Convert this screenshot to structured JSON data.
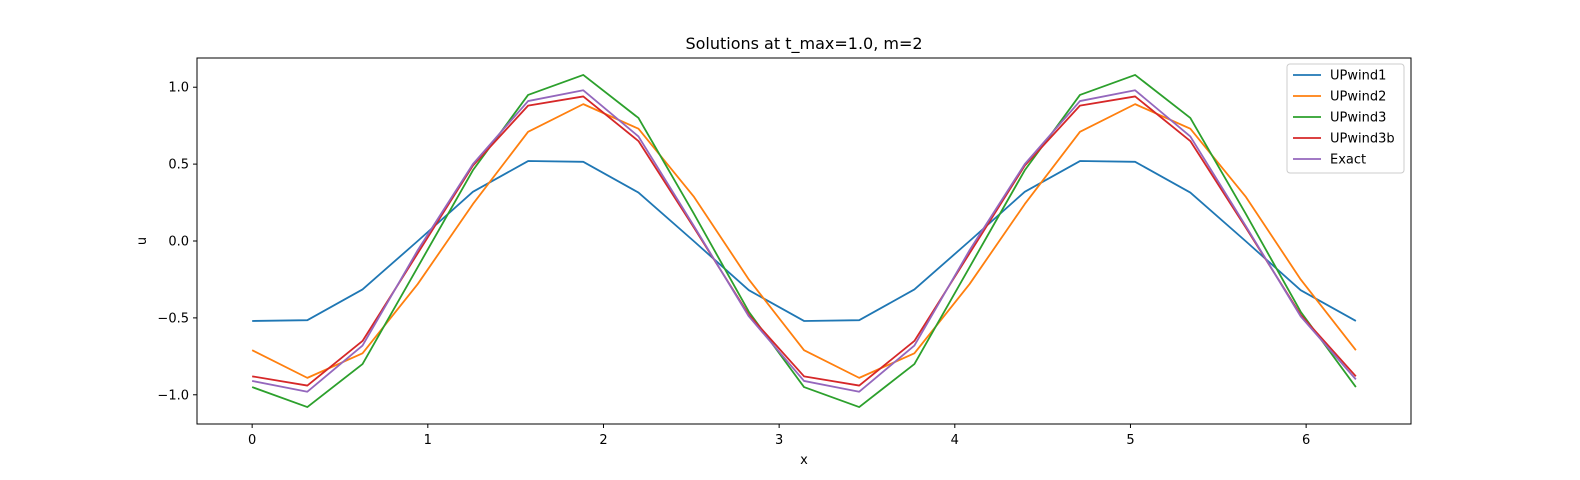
{
  "chart_data": {
    "type": "line",
    "title": "Solutions at t_max=1.0, m=2",
    "xlabel": "x",
    "ylabel": "u",
    "xlim": [
      -0.314,
      6.597
    ],
    "ylim": [
      -1.19,
      1.19
    ],
    "xticks": [
      0,
      1,
      2,
      3,
      4,
      5,
      6
    ],
    "yticks": [
      -1.0,
      -0.5,
      0.0,
      0.5,
      1.0
    ],
    "xtick_labels": [
      "0",
      "1",
      "2",
      "3",
      "4",
      "5",
      "6"
    ],
    "ytick_labels": [
      "−1.0",
      "−0.5",
      "0.0",
      "0.5",
      "1.0"
    ],
    "grid": false,
    "legend_position": "top-right",
    "x": [
      0.0,
      0.3142,
      0.6283,
      0.9425,
      1.2566,
      1.5708,
      1.885,
      2.1991,
      2.5133,
      2.8274,
      3.1416,
      3.4558,
      3.7699,
      4.0841,
      4.3982,
      4.7124,
      5.0265,
      5.3407,
      5.6549,
      5.969,
      6.2832
    ],
    "series": [
      {
        "name": "UPwind1",
        "color": "#1f77b4",
        "values": [
          -0.52,
          -0.515,
          -0.315,
          -0.0,
          0.32,
          0.52,
          0.515,
          0.315,
          0.0,
          -0.32,
          -0.52,
          -0.515,
          -0.315,
          -0.0,
          0.32,
          0.52,
          0.515,
          0.315,
          0.0,
          -0.32,
          -0.52
        ]
      },
      {
        "name": "UPwind2",
        "color": "#ff7f0e",
        "values": [
          -0.71,
          -0.89,
          -0.73,
          -0.28,
          0.24,
          0.71,
          0.89,
          0.73,
          0.29,
          -0.25,
          -0.71,
          -0.89,
          -0.73,
          -0.28,
          0.24,
          0.71,
          0.89,
          0.73,
          0.29,
          -0.25,
          -0.71
        ]
      },
      {
        "name": "UPwind3",
        "color": "#2ca02c",
        "values": [
          -0.95,
          -1.08,
          -0.8,
          -0.17,
          0.46,
          0.95,
          1.08,
          0.8,
          0.18,
          -0.46,
          -0.95,
          -1.08,
          -0.8,
          -0.17,
          0.46,
          0.95,
          1.08,
          0.8,
          0.18,
          -0.46,
          -0.95
        ]
      },
      {
        "name": "UPwind3b",
        "color": "#d62728",
        "values": [
          -0.88,
          -0.94,
          -0.65,
          -0.08,
          0.49,
          0.88,
          0.94,
          0.65,
          0.09,
          -0.48,
          -0.88,
          -0.94,
          -0.65,
          -0.08,
          0.49,
          0.88,
          0.94,
          0.65,
          0.09,
          -0.48,
          -0.88
        ]
      },
      {
        "name": "Exact",
        "color": "#9467bd",
        "values": [
          -0.91,
          -0.98,
          -0.68,
          -0.06,
          0.5,
          0.91,
          0.98,
          0.68,
          0.1,
          -0.49,
          -0.91,
          -0.98,
          -0.68,
          -0.06,
          0.5,
          0.91,
          0.98,
          0.68,
          0.1,
          -0.49,
          -0.9
        ]
      }
    ]
  }
}
